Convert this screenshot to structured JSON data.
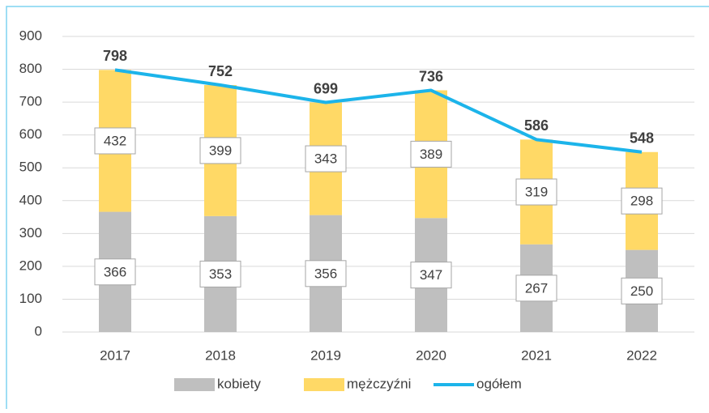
{
  "chart_data": {
    "type": "bar-line",
    "categories": [
      "2017",
      "2018",
      "2019",
      "2020",
      "2021",
      "2022"
    ],
    "series": [
      {
        "name": "kobiety",
        "color": "#bfbfbf",
        "type": "stacked-bar",
        "values": [
          366,
          353,
          356,
          347,
          267,
          250
        ]
      },
      {
        "name": "mężczyźni",
        "color": "#ffd966",
        "type": "stacked-bar",
        "values": [
          432,
          399,
          343,
          389,
          319,
          298
        ]
      },
      {
        "name": "ogółem",
        "color": "#1cb4ea",
        "type": "line",
        "values": [
          798,
          752,
          699,
          736,
          586,
          548
        ]
      }
    ],
    "ylim": [
      0,
      900
    ],
    "yticks": [
      0,
      100,
      200,
      300,
      400,
      500,
      600,
      700,
      800,
      900
    ],
    "grid": true,
    "legend": "bottom"
  }
}
